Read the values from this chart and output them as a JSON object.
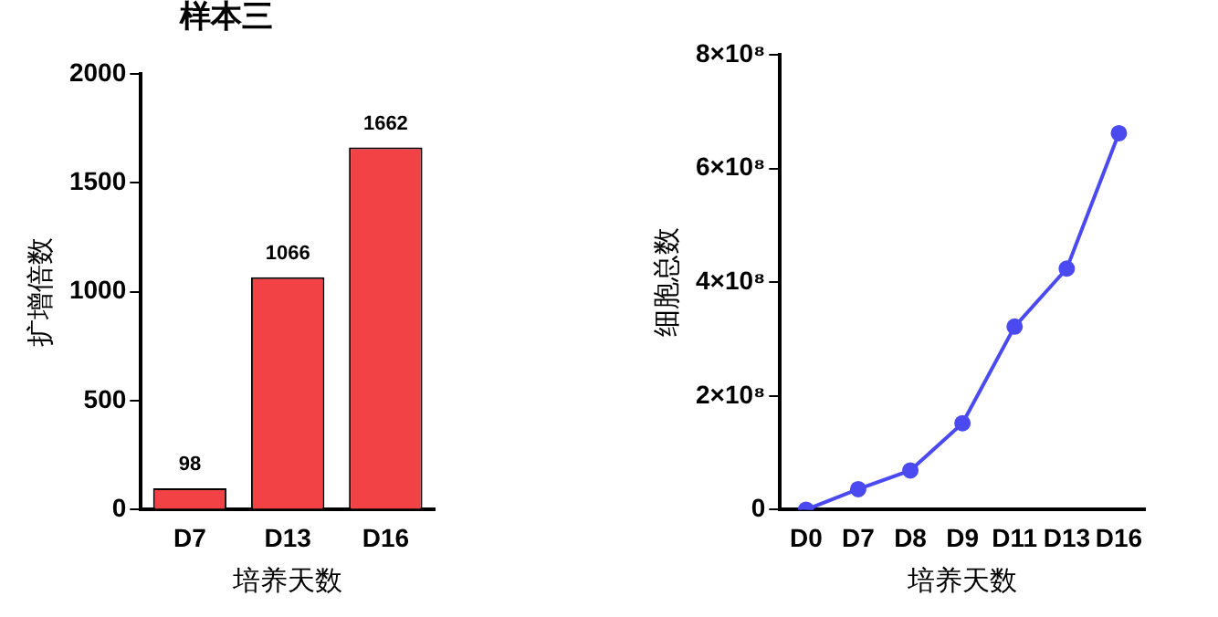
{
  "chart_data": [
    {
      "type": "bar",
      "title": "样本三",
      "xlabel": "培养天数",
      "ylabel": "扩增倍数",
      "categories": [
        "D7",
        "D13",
        "D16"
      ],
      "values": [
        98,
        1066,
        1662
      ],
      "color": "#f24245",
      "ylim": [
        0,
        2000
      ],
      "yticks": [
        0,
        500,
        1000,
        1500,
        2000
      ],
      "data_labels": true,
      "grid": false
    },
    {
      "type": "line",
      "xlabel": "培养天数",
      "ylabel": "细胞总数",
      "categories": [
        "D0",
        "D7",
        "D8",
        "D9",
        "D11",
        "D13",
        "D16"
      ],
      "values": [
        0,
        36000000,
        69000000,
        152000000,
        322000000,
        424000000,
        662000000
      ],
      "color": "#4a4af0",
      "marker": "circle",
      "ylim": [
        0,
        800000000
      ],
      "yticks": [
        0,
        {
          "value": 200000000,
          "label": "2×10⁸"
        },
        {
          "value": 400000000,
          "label": "4×10⁸"
        },
        {
          "value": 600000000,
          "label": "6×10⁸"
        },
        {
          "value": 800000000,
          "label": "8×10⁸"
        }
      ],
      "grid": false
    }
  ]
}
